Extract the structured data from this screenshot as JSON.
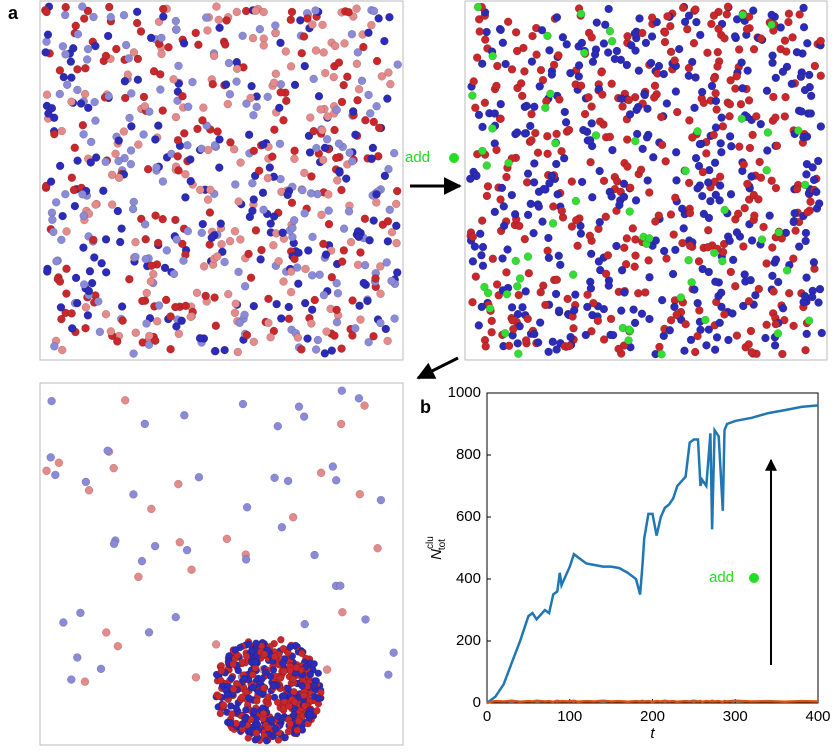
{
  "annotations": [
    "a",
    "b",
    "add",
    "add"
  ],
  "chart_data": {
    "type": "line",
    "xlabel": "t",
    "ylabel": {
      "base": "N",
      "sub": "tot",
      "sup": "clu"
    },
    "x": [
      0,
      5,
      10,
      20,
      30,
      40,
      50,
      55,
      60,
      70,
      75,
      80,
      85,
      88,
      90,
      100,
      105,
      110,
      120,
      130,
      140,
      150,
      160,
      170,
      180,
      185,
      188,
      190,
      195,
      200,
      205,
      210,
      215,
      220,
      225,
      230,
      240,
      245,
      250,
      255,
      258,
      260,
      265,
      270,
      272,
      275,
      280,
      285,
      287,
      290,
      300,
      320,
      340,
      360,
      380,
      400
    ],
    "series": [
      {
        "color": "#1f77b4",
        "values": [
          0,
          10,
          20,
          60,
          130,
          200,
          280,
          290,
          270,
          300,
          290,
          350,
          360,
          420,
          380,
          440,
          480,
          470,
          450,
          445,
          440,
          440,
          435,
          420,
          400,
          350,
          450,
          530,
          610,
          610,
          540,
          600,
          630,
          640,
          660,
          700,
          730,
          840,
          850,
          850,
          700,
          720,
          700,
          870,
          560,
          880,
          860,
          620,
          880,
          900,
          910,
          920,
          935,
          945,
          955,
          960
        ]
      },
      {
        "color": "#d95319",
        "values": [
          0,
          4,
          6,
          5,
          7,
          4,
          6,
          5,
          7,
          5,
          6,
          4,
          7,
          5,
          6,
          5,
          7,
          4,
          6,
          5,
          7,
          5,
          6,
          4,
          6,
          5,
          7,
          5,
          6,
          4,
          6,
          5,
          7,
          5,
          6,
          4,
          6,
          5,
          7,
          5,
          6,
          4,
          6,
          5,
          7,
          5,
          6,
          4,
          6,
          5,
          7,
          5,
          6,
          4,
          6,
          5
        ]
      }
    ],
    "xlim": [
      0,
      400
    ],
    "xticks": [
      0,
      100,
      200,
      300,
      400
    ],
    "ylim": [
      0,
      1000
    ],
    "yticks": [
      0,
      200,
      400,
      600,
      800,
      1000
    ]
  }
}
